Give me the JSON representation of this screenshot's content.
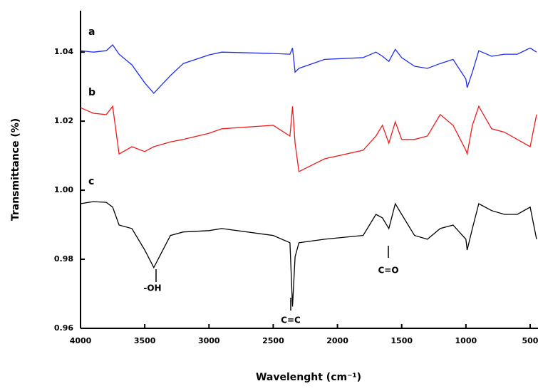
{
  "chart_data": {
    "type": "line",
    "xlabel": "Wavelenght (cm⁻¹)",
    "ylabel": "Transmittance (%)",
    "x": [
      4000,
      3900,
      3800,
      3750,
      3700,
      3600,
      3500,
      3430,
      3300,
      3200,
      3000,
      2900,
      2500,
      2370,
      2350,
      2330,
      2300,
      2100,
      1800,
      1700,
      1650,
      1600,
      1550,
      1500,
      1400,
      1300,
      1200,
      1100,
      1000,
      990,
      950,
      900,
      800,
      700,
      600,
      500,
      450
    ],
    "series": [
      {
        "name": "a",
        "color": "#1f2cf0",
        "values": [
          1.0404,
          1.04,
          1.0404,
          1.0421,
          1.0394,
          1.0363,
          1.0311,
          1.0281,
          1.0332,
          1.0367,
          1.0392,
          1.04,
          1.0396,
          1.0394,
          1.0412,
          1.0342,
          1.0353,
          1.0379,
          1.0384,
          1.04,
          1.0388,
          1.0373,
          1.0408,
          1.0384,
          1.0359,
          1.0353,
          1.0367,
          1.0379,
          1.0322,
          1.0297,
          1.0342,
          1.0404,
          1.0388,
          1.0394,
          1.0394,
          1.0412,
          1.04
        ]
      },
      {
        "name": "b",
        "color": "#ee1c1c",
        "values": [
          1.0239,
          1.0223,
          1.0219,
          1.0243,
          1.0105,
          1.0126,
          1.0112,
          1.0126,
          1.014,
          1.0147,
          1.0165,
          1.0178,
          1.0188,
          1.0157,
          1.0243,
          1.0136,
          1.0054,
          1.0091,
          1.0116,
          1.0157,
          1.0188,
          1.0136,
          1.0198,
          1.0147,
          1.0147,
          1.0157,
          1.0219,
          1.0188,
          1.0116,
          1.0105,
          1.0188,
          1.0243,
          1.0178,
          1.0168,
          1.0147,
          1.0126,
          1.0219
        ]
      },
      {
        "name": "c",
        "color": "#000000",
        "values": [
          0.9961,
          0.9967,
          0.9965,
          0.9951,
          0.9899,
          0.9889,
          0.9827,
          0.9776,
          0.9869,
          0.9879,
          0.9883,
          0.9889,
          0.9869,
          0.9848,
          0.9663,
          0.9807,
          0.9848,
          0.9858,
          0.9869,
          0.993,
          0.992,
          0.9889,
          0.9961,
          0.993,
          0.9869,
          0.9858,
          0.9889,
          0.9899,
          0.9858,
          0.9827,
          0.9889,
          0.9961,
          0.9941,
          0.993,
          0.993,
          0.9951,
          0.9858
        ]
      }
    ],
    "annotations": [
      "-OH",
      "C=C",
      "C=O"
    ],
    "xlim": [
      4000,
      450
    ],
    "xticks": [
      4000,
      3500,
      3000,
      2500,
      2000,
      1500,
      1000,
      500
    ],
    "ylim": [
      0.96,
      1.052
    ],
    "yticks": [
      {
        "value": 0.96,
        "label": "0.96"
      },
      {
        "value": 0.98,
        "label": "0.98"
      },
      {
        "value": 1,
        "label": "1.00"
      },
      {
        "value": 1.02,
        "label": "1.02"
      },
      {
        "value": 1.04,
        "label": "1.04"
      }
    ]
  }
}
